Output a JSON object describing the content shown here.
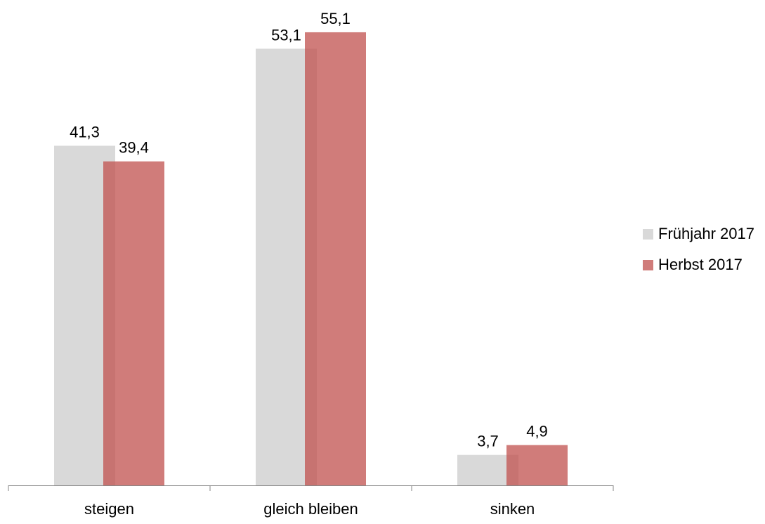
{
  "chart_data": {
    "type": "bar",
    "title": "",
    "xlabel": "",
    "ylabel": "",
    "categories": [
      "steigen",
      "gleich bleiben",
      "sinken"
    ],
    "series": [
      {
        "name": "Frühjahr 2017",
        "color": "#d9d9d9",
        "values": [
          41.3,
          53.1,
          3.7
        ],
        "labels": [
          "41,3",
          "53,1",
          "3,7"
        ]
      },
      {
        "name": "Herbst 2017",
        "color": "#c0504d",
        "values": [
          39.4,
          55.1,
          4.9
        ],
        "labels": [
          "39,4",
          "55,1",
          "4,9"
        ]
      }
    ],
    "ylim": [
      0,
      58
    ],
    "grid": false,
    "legend": "right"
  }
}
